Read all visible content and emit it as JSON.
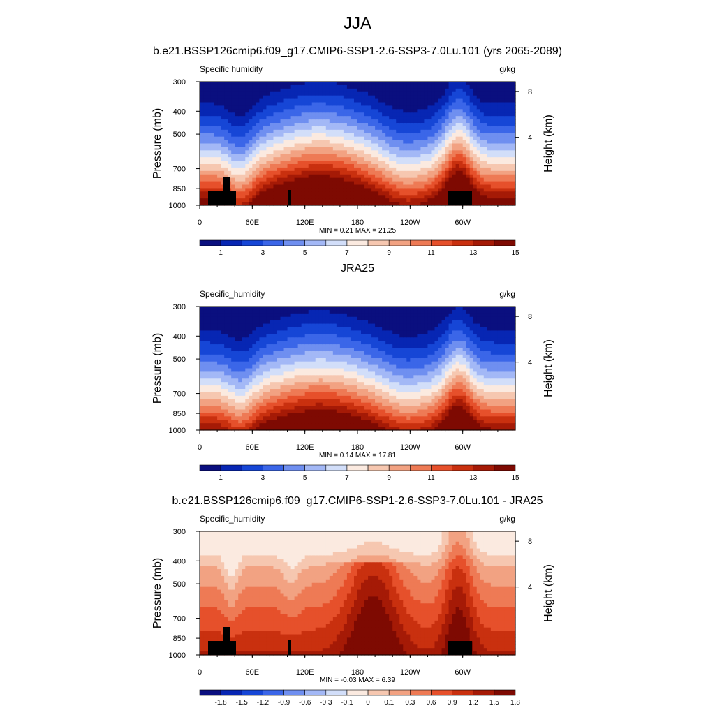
{
  "title": "JJA",
  "colors": [
    "#0a0f7f",
    "#0726b3",
    "#1646d6",
    "#3b66e8",
    "#6f8ff0",
    "#a3b8f6",
    "#d2def9",
    "#fbeae0",
    "#f6c7b0",
    "#f2a282",
    "#ee7a55",
    "#e6502b",
    "#c9300f",
    "#a51a06",
    "#7e0a02"
  ],
  "chart_data": [
    {
      "type": "heatmap",
      "title": "b.e21.BSSP126cmip6.f09_g17.CMIP6-SSP1-2.6-SSP3-7.0Lu.101 (yrs 2065-2089)",
      "left_label": "Specific humidity",
      "units": "g/kg",
      "ylabel": "Pressure (mb)",
      "y2label": "Height (km)",
      "y_ticks": [
        "300",
        "400",
        "500",
        "700",
        "850",
        "1000"
      ],
      "y2_ticks": [
        "8",
        "4"
      ],
      "x_ticks": [
        "0",
        "60E",
        "120E",
        "180",
        "120W",
        "60W"
      ],
      "stats": "MIN =   0.21  MAX =  21.25",
      "colorbar_labels": [
        "1",
        "3",
        "5",
        "7",
        "9",
        "11",
        "13",
        "15"
      ],
      "topography": true
    },
    {
      "type": "heatmap",
      "title": "JRA25",
      "left_label": "Specific_humidity",
      "units": "g/kg",
      "ylabel": "Pressure (mb)",
      "y2label": "Height (km)",
      "y_ticks": [
        "300",
        "400",
        "500",
        "700",
        "850",
        "1000"
      ],
      "y2_ticks": [
        "8",
        "4"
      ],
      "x_ticks": [
        "0",
        "60E",
        "120E",
        "180",
        "120W",
        "60W"
      ],
      "stats": "MIN =   0.14  MAX =  17.81",
      "colorbar_labels": [
        "1",
        "3",
        "5",
        "7",
        "9",
        "11",
        "13",
        "15"
      ],
      "topography": false
    },
    {
      "type": "heatmap",
      "title": "b.e21.BSSP126cmip6.f09_g17.CMIP6-SSP1-2.6-SSP3-7.0Lu.101 - JRA25",
      "left_label": "Specific_humidity",
      "units": "g/kg",
      "ylabel": "Pressure (mb)",
      "y2label": "Height (km)",
      "y_ticks": [
        "300",
        "400",
        "500",
        "700",
        "850",
        "1000"
      ],
      "y2_ticks": [
        "8",
        "4"
      ],
      "x_ticks": [
        "0",
        "60E",
        "120E",
        "180",
        "120W",
        "60W"
      ],
      "stats": "MIN =  -0.03  MAX =   6.39",
      "colorbar_labels": [
        "-1.8",
        "-1.5",
        "-1.2",
        "-0.9",
        "-0.6",
        "-0.3",
        "-0.1",
        "0",
        "0.1",
        "0.3",
        "0.6",
        "0.9",
        "1.2",
        "1.5",
        "1.8"
      ],
      "topography": true
    }
  ]
}
